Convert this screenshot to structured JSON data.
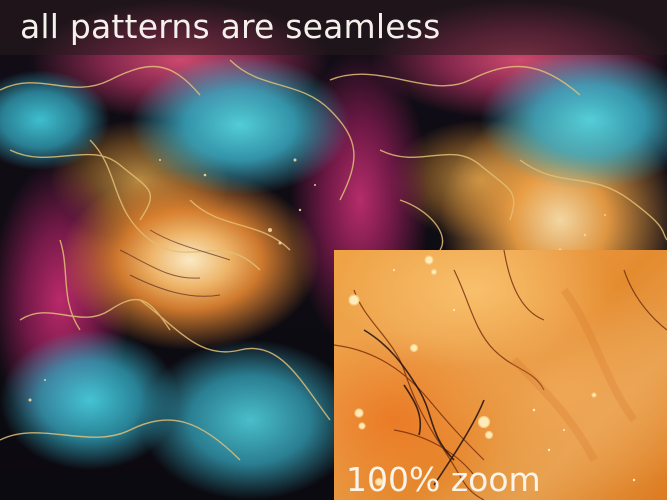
{
  "headline": "all patterns are seamless",
  "zoom_label": "100% zoom",
  "colors": {
    "background_dark": "#0d0a12",
    "turquoise": "#56d7e1",
    "magenta": "#d23278",
    "orange": "#f08c32",
    "gold": "#d8b062",
    "text": "#f4f0ec"
  }
}
